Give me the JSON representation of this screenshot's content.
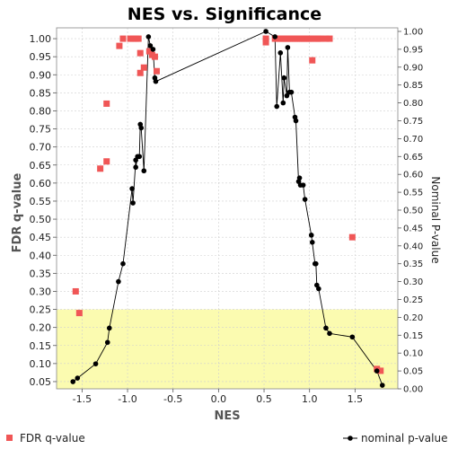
{
  "chart_data": {
    "type": "scatter",
    "title": "NES vs. Significance",
    "xlabel": "NES",
    "ylabel": "FDR q-value",
    "y2label": "Nominal P-value",
    "xlim": [
      -1.78,
      1.97
    ],
    "ylim": [
      0.03,
      1.03
    ],
    "y2lim": [
      0.0,
      1.01
    ],
    "x_ticks": [
      "-1.5",
      "-1.0",
      "-0.5",
      "0.0",
      "0.5",
      "1.0",
      "1.5"
    ],
    "y_ticks": [
      "0.05",
      "0.10",
      "0.15",
      "0.20",
      "0.25",
      "0.30",
      "0.35",
      "0.40",
      "0.45",
      "0.50",
      "0.55",
      "0.60",
      "0.65",
      "0.70",
      "0.75",
      "0.80",
      "0.85",
      "0.90",
      "0.95",
      "1.00"
    ],
    "y2_ticks": [
      "0.00",
      "0.05",
      "0.10",
      "0.15",
      "0.20",
      "0.25",
      "0.30",
      "0.35",
      "0.40",
      "0.45",
      "0.50",
      "0.55",
      "0.60",
      "0.65",
      "0.70",
      "0.75",
      "0.80",
      "0.85",
      "0.90",
      "0.95",
      "1.00"
    ],
    "highlight_band": {
      "y_from": 0.03,
      "y_to": 0.25,
      "color": "#fbfbb0"
    },
    "grid": true,
    "legend_position": "bottom",
    "colors": {
      "fdr": "#f05656",
      "nominal": "#000000",
      "plot_bg": "#ffffff",
      "band": "#fbfbb0"
    },
    "series": [
      {
        "name": "FDR q-value",
        "axis": "left",
        "marker": "square",
        "points": [
          [
            -1.57,
            0.3
          ],
          [
            -1.53,
            0.24
          ],
          [
            -1.3,
            0.64
          ],
          [
            -1.23,
            0.66
          ],
          [
            -1.23,
            0.82
          ],
          [
            -1.09,
            0.98
          ],
          [
            -1.05,
            1.0
          ],
          [
            -0.97,
            1.0
          ],
          [
            -0.94,
            1.0
          ],
          [
            -0.91,
            1.0
          ],
          [
            -0.88,
            1.0
          ],
          [
            -0.86,
            0.96
          ],
          [
            -0.86,
            0.905
          ],
          [
            -0.82,
            0.92
          ],
          [
            -0.76,
            0.965
          ],
          [
            -0.73,
            0.955
          ],
          [
            -0.7,
            0.95
          ],
          [
            -0.68,
            0.91
          ],
          [
            0.52,
            1.0
          ],
          [
            0.52,
            0.99
          ],
          [
            0.62,
            1.0
          ],
          [
            0.65,
            1.0
          ],
          [
            0.68,
            1.0
          ],
          [
            0.7,
            1.0
          ],
          [
            0.72,
            1.0
          ],
          [
            0.74,
            1.0
          ],
          [
            0.76,
            1.0
          ],
          [
            0.78,
            1.0
          ],
          [
            0.8,
            1.0
          ],
          [
            0.82,
            1.0
          ],
          [
            0.84,
            1.0
          ],
          [
            0.86,
            1.0
          ],
          [
            0.88,
            1.0
          ],
          [
            0.9,
            1.0
          ],
          [
            0.92,
            1.0
          ],
          [
            0.94,
            1.0
          ],
          [
            0.96,
            1.0
          ],
          [
            0.98,
            1.0
          ],
          [
            1.0,
            1.0
          ],
          [
            1.02,
            1.0
          ],
          [
            1.05,
            1.0
          ],
          [
            1.08,
            1.0
          ],
          [
            1.1,
            1.0
          ],
          [
            1.12,
            1.0
          ],
          [
            1.18,
            1.0
          ],
          [
            1.22,
            1.0
          ],
          [
            1.03,
            0.94
          ],
          [
            1.47,
            0.45
          ],
          [
            1.74,
            0.085
          ],
          [
            1.78,
            0.08
          ]
        ]
      },
      {
        "name": "nominal p-value",
        "axis": "right",
        "marker": "circle-line",
        "points": [
          [
            -1.6,
            0.02
          ],
          [
            -1.55,
            0.03
          ],
          [
            -1.35,
            0.07
          ],
          [
            -1.22,
            0.13
          ],
          [
            -1.2,
            0.17
          ],
          [
            -1.1,
            0.3
          ],
          [
            -1.05,
            0.35
          ],
          [
            -0.95,
            0.56
          ],
          [
            -0.94,
            0.52
          ],
          [
            -0.91,
            0.64
          ],
          [
            -0.91,
            0.62
          ],
          [
            -0.89,
            0.65
          ],
          [
            -0.87,
            0.65
          ],
          [
            -0.86,
            0.74
          ],
          [
            -0.85,
            0.73
          ],
          [
            -0.82,
            0.61
          ],
          [
            -0.77,
            0.985
          ],
          [
            -0.75,
            0.96
          ],
          [
            -0.72,
            0.95
          ],
          [
            -0.7,
            0.87
          ],
          [
            -0.69,
            0.86
          ],
          [
            0.52,
            1.0
          ],
          [
            0.62,
            0.985
          ],
          [
            0.64,
            0.79
          ],
          [
            0.68,
            0.94
          ],
          [
            0.71,
            0.8
          ],
          [
            0.72,
            0.87
          ],
          [
            0.75,
            0.82
          ],
          [
            0.76,
            0.955
          ],
          [
            0.78,
            0.83
          ],
          [
            0.8,
            0.83
          ],
          [
            0.84,
            0.76
          ],
          [
            0.85,
            0.75
          ],
          [
            0.88,
            0.58
          ],
          [
            0.89,
            0.59
          ],
          [
            0.9,
            0.57
          ],
          [
            0.93,
            0.57
          ],
          [
            0.95,
            0.53
          ],
          [
            1.02,
            0.43
          ],
          [
            1.03,
            0.41
          ],
          [
            1.06,
            0.35
          ],
          [
            1.07,
            0.35
          ],
          [
            1.08,
            0.29
          ],
          [
            1.1,
            0.28
          ],
          [
            1.18,
            0.17
          ],
          [
            1.22,
            0.155
          ],
          [
            1.47,
            0.145
          ],
          [
            1.74,
            0.05
          ],
          [
            1.8,
            0.01
          ]
        ]
      }
    ]
  }
}
